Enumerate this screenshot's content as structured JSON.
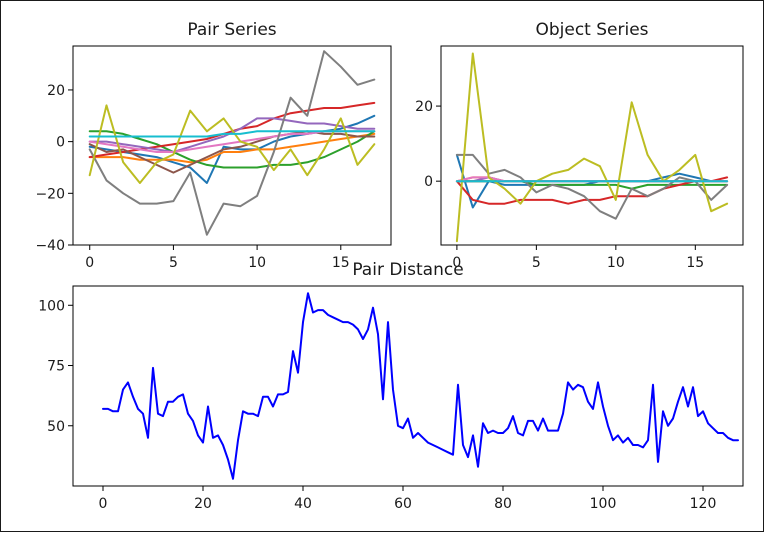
{
  "chart_data": [
    {
      "type": "line",
      "title": "Pair Series",
      "xlabel": "",
      "ylabel": "",
      "xlim": [
        -1,
        18
      ],
      "ylim": [
        -40,
        37
      ],
      "xticks": [
        0,
        5,
        10,
        15
      ],
      "yticks": [
        -40,
        -20,
        0,
        20
      ],
      "grid": false,
      "x": [
        0,
        1,
        2,
        3,
        4,
        5,
        6,
        7,
        8,
        9,
        10,
        11,
        12,
        13,
        14,
        15,
        16,
        17
      ],
      "series": [
        {
          "color": "#1f77b4",
          "values": [
            -2,
            -3,
            -4,
            -5,
            -6,
            -8,
            -10,
            -16,
            -2,
            -3,
            -3,
            0,
            2,
            3,
            4,
            5,
            7,
            10
          ]
        },
        {
          "color": "#ff7f0e",
          "values": [
            -6,
            -6,
            -6,
            -7,
            -7,
            -7,
            -8,
            -7,
            -4,
            -4,
            -3,
            -3,
            -2,
            -1,
            0,
            1,
            2,
            3
          ]
        },
        {
          "color": "#2ca02c",
          "values": [
            4,
            4,
            3,
            1,
            -1,
            -4,
            -7,
            -9,
            -10,
            -10,
            -10,
            -9,
            -9,
            -8,
            -6,
            -3,
            0,
            4
          ]
        },
        {
          "color": "#d62728",
          "values": [
            -6,
            -5,
            -4,
            -3,
            -2,
            -1,
            0,
            1,
            3,
            5,
            6,
            9,
            11,
            12,
            13,
            13,
            14,
            15
          ]
        },
        {
          "color": "#9467bd",
          "values": [
            0,
            0,
            -1,
            -2,
            -3,
            -4,
            -2,
            0,
            2,
            5,
            9,
            9,
            8,
            7,
            7,
            6,
            5,
            5
          ]
        },
        {
          "color": "#8c564b",
          "values": [
            -1,
            -4,
            -3,
            -6,
            -9,
            -12,
            -9,
            -6,
            -3,
            -2,
            0,
            2,
            3,
            4,
            3,
            3,
            2,
            2
          ]
        },
        {
          "color": "#e377c2",
          "values": [
            0,
            -1,
            -2,
            -3,
            -4,
            -4,
            -3,
            -2,
            -1,
            0,
            1,
            2,
            3,
            3,
            4,
            4,
            4,
            4
          ]
        },
        {
          "color": "#7f7f7f",
          "values": [
            -3,
            -15,
            -20,
            -24,
            -24,
            -23,
            -12,
            -36,
            -24,
            -25,
            -21,
            -4,
            17,
            10,
            35,
            29,
            22,
            24
          ]
        },
        {
          "color": "#bcbd22",
          "values": [
            -13,
            14,
            -8,
            -16,
            -8,
            -5,
            12,
            4,
            9,
            0,
            -2,
            -11,
            -3,
            -13,
            -3,
            9,
            -9,
            -1
          ]
        },
        {
          "color": "#17becf",
          "values": [
            2,
            2,
            2,
            2,
            2,
            2,
            2,
            2,
            3,
            3,
            4,
            4,
            4,
            4,
            4,
            4,
            4,
            4
          ]
        }
      ]
    },
    {
      "type": "line",
      "title": "Object Series",
      "xlabel": "",
      "ylabel": "",
      "xlim": [
        -1,
        18
      ],
      "ylim": [
        -17,
        36
      ],
      "xticks": [
        0,
        5,
        10,
        15
      ],
      "yticks": [
        0,
        20
      ],
      "grid": false,
      "x": [
        0,
        1,
        2,
        3,
        4,
        5,
        6,
        7,
        8,
        9,
        10,
        11,
        12,
        13,
        14,
        15,
        16,
        17
      ],
      "series": [
        {
          "color": "#1f77b4",
          "values": [
            7,
            -7,
            0,
            -1,
            -1,
            -1,
            -1,
            -1,
            -1,
            0,
            0,
            0,
            0,
            1,
            2,
            1,
            0,
            0
          ]
        },
        {
          "color": "#ff7f0e",
          "values": [
            0,
            1,
            1,
            0,
            0,
            0,
            0,
            0,
            0,
            0,
            0,
            0,
            0,
            0,
            0,
            0,
            0,
            0
          ]
        },
        {
          "color": "#2ca02c",
          "values": [
            0,
            0,
            0,
            0,
            0,
            -1,
            -1,
            -1,
            -1,
            -1,
            -1,
            -2,
            -1,
            -1,
            -1,
            -1,
            -1,
            -1
          ]
        },
        {
          "color": "#d62728",
          "values": [
            0,
            -5,
            -6,
            -6,
            -5,
            -5,
            -5,
            -6,
            -5,
            -5,
            -4,
            -4,
            -4,
            -2,
            -1,
            0,
            0,
            1
          ]
        },
        {
          "color": "#9467bd",
          "values": [
            0,
            0,
            1,
            0,
            0,
            0,
            0,
            0,
            0,
            0,
            0,
            0,
            0,
            0,
            0,
            0,
            0,
            0
          ]
        },
        {
          "color": "#8c564b",
          "values": [
            0,
            0,
            0,
            0,
            0,
            0,
            0,
            0,
            0,
            0,
            0,
            0,
            0,
            0,
            0,
            0,
            0,
            0
          ]
        },
        {
          "color": "#e377c2",
          "values": [
            0,
            1,
            1,
            0,
            0,
            0,
            0,
            0,
            0,
            0,
            0,
            0,
            0,
            0,
            0,
            0,
            0,
            0
          ]
        },
        {
          "color": "#7f7f7f",
          "values": [
            7,
            7,
            2,
            3,
            1,
            -3,
            -1,
            -2,
            -4,
            -8,
            -10,
            -2,
            -4,
            -2,
            1,
            0,
            -5,
            -1
          ]
        },
        {
          "color": "#bcbd22",
          "values": [
            -16,
            34,
            1,
            -2,
            -6,
            0,
            2,
            3,
            6,
            4,
            -5,
            21,
            7,
            0,
            3,
            7,
            -8,
            -6
          ]
        },
        {
          "color": "#17becf",
          "values": [
            0,
            0,
            0,
            0,
            0,
            0,
            0,
            0,
            0,
            0,
            0,
            0,
            0,
            0,
            0,
            0,
            0,
            0
          ]
        }
      ]
    },
    {
      "type": "line",
      "title": "Pair Distance",
      "xlabel": "",
      "ylabel": "",
      "xlim": [
        -6,
        128
      ],
      "ylim": [
        25,
        108
      ],
      "xticks": [
        0,
        20,
        40,
        60,
        80,
        100,
        120
      ],
      "yticks": [
        50,
        75,
        100
      ],
      "grid": false,
      "series": [
        {
          "color": "#0000ff",
          "values": [
            57,
            57,
            56,
            56,
            65,
            68,
            62,
            57,
            55,
            45,
            74,
            55,
            54,
            60,
            60,
            62,
            63,
            55,
            52,
            46,
            43,
            58,
            45,
            46,
            42,
            36,
            28,
            44,
            56,
            55,
            55,
            54,
            62,
            62,
            58,
            63,
            63,
            64,
            81,
            72,
            93,
            105,
            97,
            98,
            98,
            96,
            95,
            94,
            93,
            93,
            92,
            90,
            86,
            90,
            99,
            88,
            61,
            93,
            65,
            50,
            49,
            53,
            45,
            47,
            45,
            43,
            42,
            41,
            40,
            39,
            38,
            67,
            42,
            37,
            46,
            33,
            51,
            47,
            48,
            47,
            47,
            49,
            54,
            47,
            46,
            52,
            52,
            48,
            53,
            48,
            48,
            48,
            55,
            68,
            65,
            67,
            66,
            60,
            57,
            68,
            58,
            50,
            44,
            46,
            43,
            45,
            42,
            42,
            41,
            44,
            67,
            35,
            56,
            50,
            53,
            60,
            66,
            58,
            66,
            54,
            56,
            51,
            49,
            47,
            47,
            45,
            44,
            44
          ]
        }
      ]
    }
  ]
}
